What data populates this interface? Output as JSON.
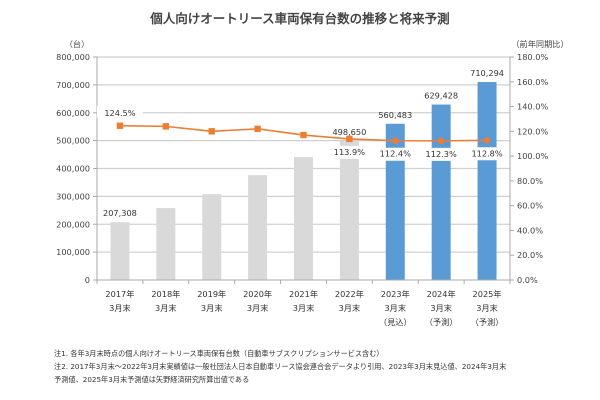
{
  "chart_data": {
    "type": "bar",
    "title": "個人向けオートリース車両保有台数の推移と将来予測",
    "ylabel": "（台）",
    "y2label": "（前年同期比）",
    "ylim": [
      0,
      800000
    ],
    "y2lim": [
      0,
      180
    ],
    "yticks": [
      "0",
      "100,000",
      "200,000",
      "300,000",
      "400,000",
      "500,000",
      "600,000",
      "700,000",
      "800,000"
    ],
    "y2ticks": [
      "0.0%",
      "20.0%",
      "40.0%",
      "60.0%",
      "80.0%",
      "100.0%",
      "120.0%",
      "140.0%",
      "160.0%",
      "180.0%"
    ],
    "grid": true,
    "categories": [
      [
        "2017年",
        "3月末",
        ""
      ],
      [
        "2018年",
        "3月末",
        ""
      ],
      [
        "2019年",
        "3月末",
        ""
      ],
      [
        "2020年",
        "3月末",
        ""
      ],
      [
        "2021年",
        "3月末",
        ""
      ],
      [
        "2022年",
        "3月末",
        ""
      ],
      [
        "2023年",
        "3月末",
        "（見込）"
      ],
      [
        "2024年",
        "3月末",
        "（予測）"
      ],
      [
        "2025年",
        "3月末",
        "（予測）"
      ]
    ],
    "series": [
      {
        "name": "個人向けオートリース車両保有台数",
        "type": "bar",
        "axis": "left",
        "values": [
          207308,
          258000,
          308000,
          376000,
          441000,
          498650,
          560483,
          629428,
          710294
        ],
        "colors": [
          "#d9d9d9",
          "#d9d9d9",
          "#d9d9d9",
          "#d9d9d9",
          "#d9d9d9",
          "#d9d9d9",
          "#5b9bd5",
          "#5b9bd5",
          "#5b9bd5"
        ],
        "labels": [
          "207,308",
          "",
          "",
          "",
          "",
          "498,650",
          "560,483",
          "629,428",
          "710,294"
        ]
      },
      {
        "name": "前年同期比",
        "type": "line",
        "axis": "right",
        "color": "#ed7d31",
        "values": [
          124.5,
          124.0,
          120.0,
          122.0,
          117.0,
          113.9,
          112.4,
          112.3,
          112.8
        ],
        "labels": [
          "124.5%",
          "",
          "",
          "",
          "",
          "113.9%",
          "112.4%",
          "112.3%",
          "112.8%"
        ]
      }
    ]
  },
  "notes": [
    "注1. 各年3月末時点の個人向けオートリース車両保有台数（自動車サブスクリプションサービス含む）",
    "注2. 2017年3月末～2022年3月末実績値は一般社団法人日本自動車リース協会連合会データより引用、2023年3月末見込値、2024年3月末",
    "予測値、2025年3月末予測値は矢野経済研究所算出値である"
  ]
}
